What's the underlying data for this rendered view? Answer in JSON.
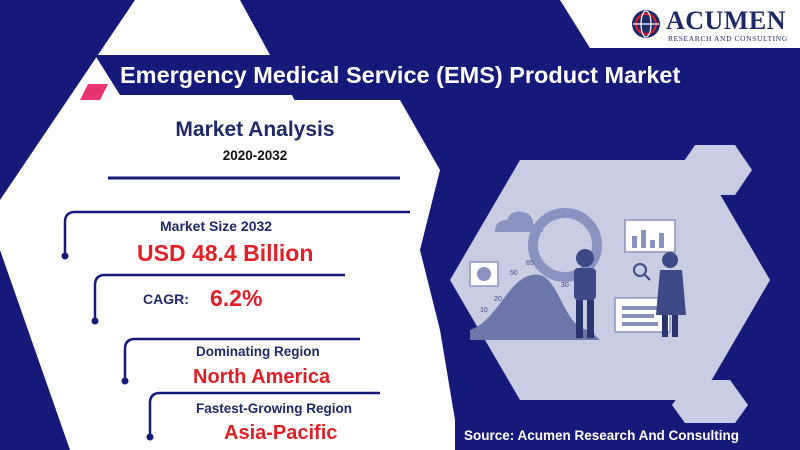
{
  "brand": {
    "name": "ACUMEN",
    "tagline": "RESEARCH AND CONSULTING"
  },
  "title": "Emergency Medical Service (EMS) Product Market",
  "analysis": {
    "heading": "Market Analysis",
    "years": "2020-2032"
  },
  "market_size": {
    "label": "Market Size 2032",
    "value": "USD 48.4 Billion"
  },
  "cagr": {
    "label": "CAGR:",
    "value": "6.2%"
  },
  "dominating_region": {
    "label": "Dominating Region",
    "value": "North America"
  },
  "fastest_region": {
    "label": "Fastest-Growing Region",
    "value": "Asia-Pacific"
  },
  "source": "Source: Acumen Research And Consulting",
  "illustration": {
    "chart_numbers": [
      "65",
      "50",
      "30",
      "20",
      "10"
    ]
  },
  "colors": {
    "navy": "#151a7a",
    "dark_navy": "#1f2a6b",
    "accent_red": "#e01f26",
    "accent_pink": "#e8336e",
    "panel_gray": "#c9cde3"
  }
}
